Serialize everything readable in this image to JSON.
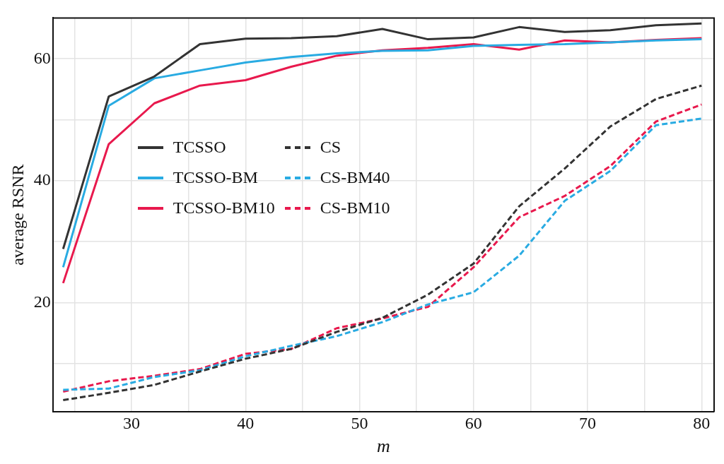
{
  "chart_data": {
    "type": "line",
    "xlabel": "m",
    "ylabel": "average RSNR",
    "x": [
      24,
      28,
      32,
      36,
      40,
      44,
      48,
      52,
      56,
      60,
      64,
      68,
      72,
      76,
      80
    ],
    "series": [
      {
        "name": "TCSSO",
        "color": "#333333",
        "line_style": "solid",
        "values": [
          28.8,
          53.8,
          57.1,
          62.4,
          63.3,
          63.4,
          63.7,
          64.9,
          63.2,
          63.5,
          65.2,
          64.4,
          64.7,
          65.5,
          65.8
        ]
      },
      {
        "name": "TCSSO-BM",
        "color": "#29abe2",
        "line_style": "solid",
        "values": [
          25.8,
          52.3,
          56.8,
          58.1,
          59.4,
          60.3,
          60.9,
          61.3,
          61.4,
          62.1,
          62.3,
          62.4,
          62.7,
          63.0,
          63.2
        ]
      },
      {
        "name": "TCSSO-BM10",
        "color": "#e8194d",
        "line_style": "solid",
        "values": [
          23.2,
          46.0,
          52.7,
          55.6,
          56.5,
          58.7,
          60.5,
          61.4,
          61.8,
          62.4,
          61.5,
          63.0,
          62.7,
          63.1,
          63.4
        ]
      },
      {
        "name": "CS",
        "color": "#333333",
        "line_style": "dashed",
        "values": [
          4.0,
          5.2,
          6.5,
          8.7,
          10.8,
          12.4,
          15.2,
          17.5,
          21.3,
          26.4,
          35.8,
          42.0,
          48.9,
          53.4,
          55.6
        ]
      },
      {
        "name": "CS-BM40",
        "color": "#29abe2",
        "line_style": "dashed",
        "values": [
          5.7,
          5.9,
          7.8,
          8.9,
          11.2,
          12.9,
          14.5,
          16.8,
          19.7,
          21.7,
          27.7,
          36.7,
          41.6,
          49.1,
          50.2
        ]
      },
      {
        "name": "CS-BM10",
        "color": "#e8194d",
        "line_style": "dashed",
        "values": [
          5.4,
          7.1,
          8.0,
          9.1,
          11.6,
          12.4,
          15.8,
          17.4,
          19.3,
          25.8,
          34.0,
          37.5,
          42.4,
          49.7,
          52.5
        ]
      }
    ],
    "xlim": [
      23.1,
      81.1
    ],
    "ylim": [
      2.1,
      66.7
    ],
    "xticks": [
      {
        "value": 25,
        "label": null
      },
      30,
      {
        "value": 35,
        "label": null
      },
      40,
      {
        "value": 45,
        "label": null
      },
      50,
      {
        "value": 55,
        "label": null
      },
      60,
      {
        "value": 65,
        "label": null
      },
      70,
      {
        "value": 75,
        "label": null
      },
      80
    ],
    "yticks": [
      {
        "value": 10,
        "label": null
      },
      20,
      {
        "value": 30,
        "label": null
      },
      40,
      {
        "value": 50,
        "label": null
      },
      60
    ],
    "grid": true,
    "legend": "left",
    "marker": "none"
  }
}
